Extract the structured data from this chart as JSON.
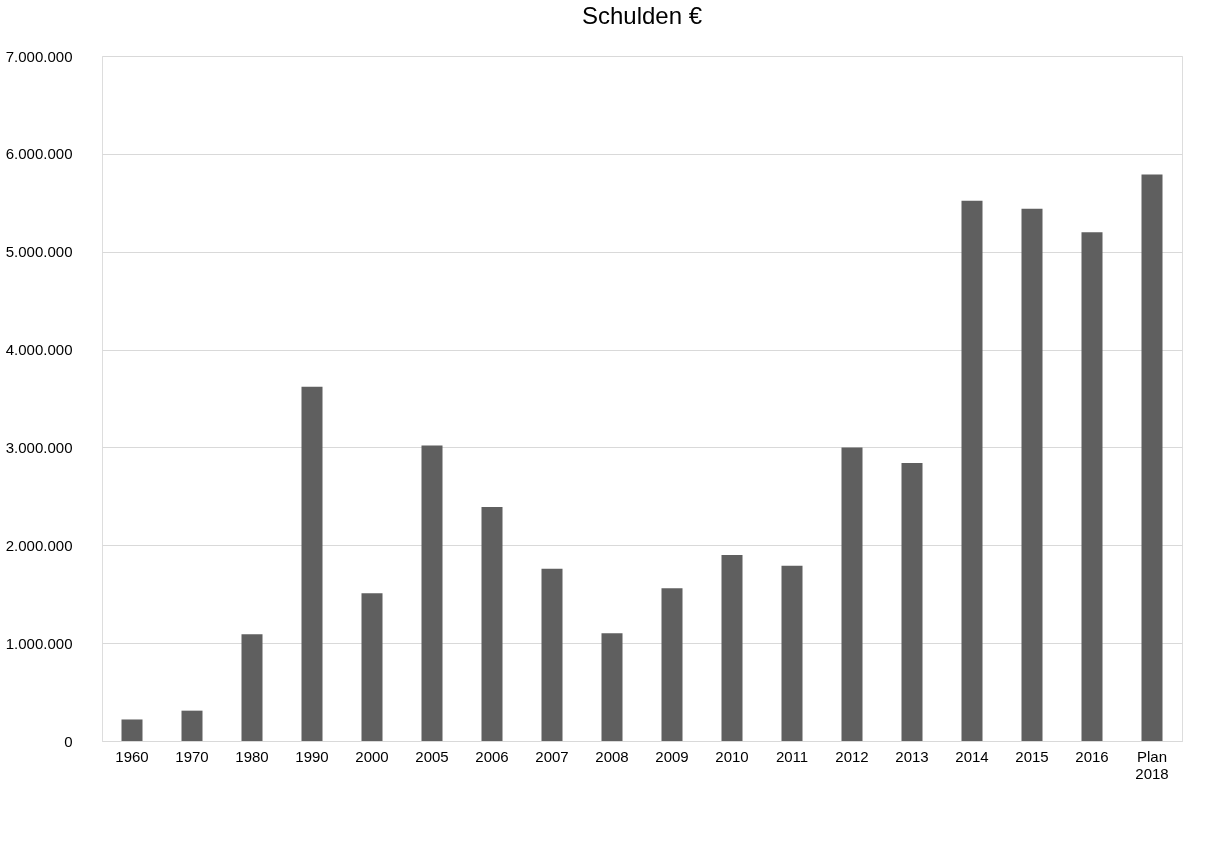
{
  "chart_data": {
    "type": "bar",
    "title": "Schulden €",
    "categories": [
      "1960",
      "1970",
      "1980",
      "1990",
      "2000",
      "2005",
      "2006",
      "2007",
      "2008",
      "2009",
      "2010",
      "2011",
      "2012",
      "2013",
      "2014",
      "2015",
      "2016",
      "Plan 2018"
    ],
    "values": [
      220000,
      310000,
      1090000,
      3620000,
      1510000,
      3020000,
      2390000,
      1760000,
      1100000,
      1560000,
      1900000,
      1790000,
      3000000,
      2840000,
      5520000,
      5440000,
      5200000,
      5790000
    ],
    "color": "#5f5f5f",
    "ylim": [
      0,
      7000000
    ],
    "yticks": [
      0,
      {
        "value": 1000000,
        "label": "1.000.000"
      },
      {
        "value": 2000000,
        "label": "2.000.000"
      },
      {
        "value": 3000000,
        "label": "3.000.000"
      },
      {
        "value": 4000000,
        "label": "4.000.000"
      },
      {
        "value": 5000000,
        "label": "5.000.000"
      },
      {
        "value": 6000000,
        "label": "6.000.000"
      },
      {
        "value": 7000000,
        "label": "7.000.000"
      }
    ],
    "grid": "y"
  }
}
